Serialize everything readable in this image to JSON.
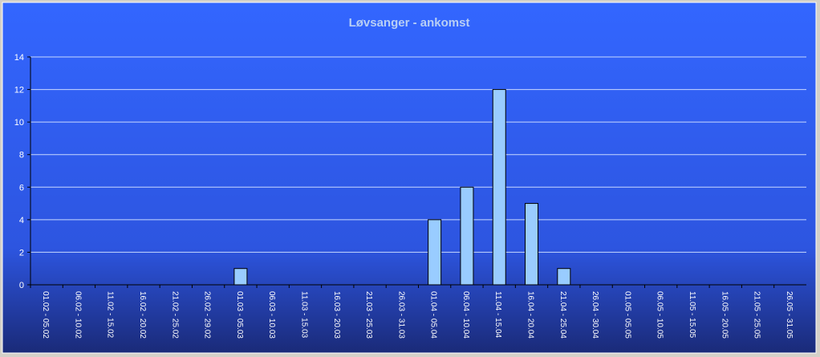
{
  "chart_data": {
    "type": "bar",
    "title": "Løvsanger - ankomst",
    "categories": [
      "01.02 - 05.02",
      "06.02 - 10.02",
      "11.02 - 15.02",
      "16.02 - 20.02",
      "21.02 - 25.02",
      "26.02 - 29.02",
      "01.03 - 05.03",
      "06.03 - 10.03",
      "11.03 - 15.03",
      "16.03 - 20.03",
      "21.03 - 25.03",
      "26.03 - 31.03",
      "01.04 - 05.04",
      "06.04 - 10.04",
      "11.04 - 15.04",
      "16.04 - 20.04",
      "21.04 - 25.04",
      "26.04 - 30.04",
      "01.05 - 05.05",
      "06.05 - 10.05",
      "11.05 - 15.05",
      "16.05 - 20.05",
      "21.05 - 25.05",
      "26.05 - 31.05"
    ],
    "values": [
      0,
      0,
      0,
      0,
      0,
      0,
      1,
      0,
      0,
      0,
      0,
      0,
      4,
      6,
      12,
      5,
      1,
      0,
      0,
      0,
      0,
      0,
      0,
      0
    ],
    "color": "#99ccff",
    "ylim": [
      0,
      14
    ],
    "yticks": [
      0,
      2,
      4,
      6,
      8,
      10,
      12,
      14
    ],
    "grid": true
  }
}
